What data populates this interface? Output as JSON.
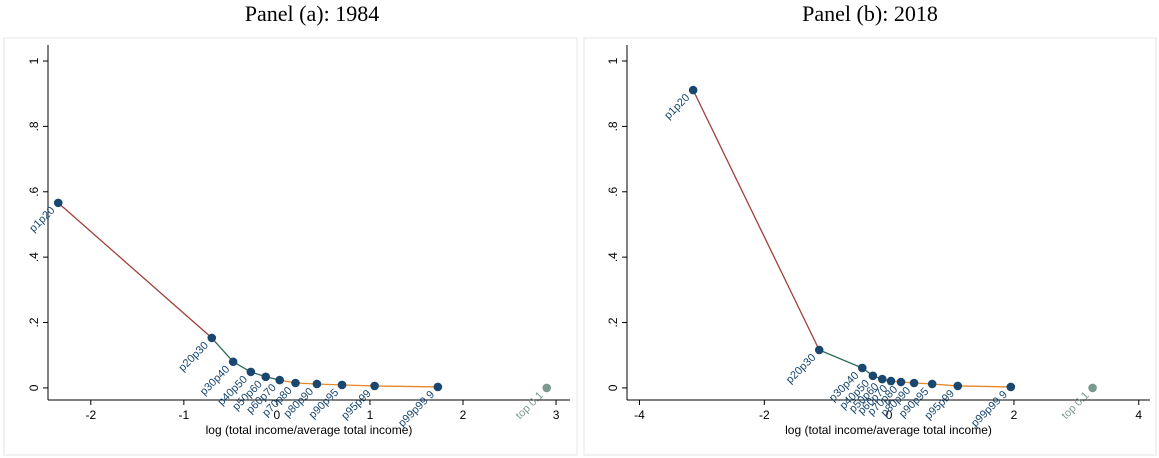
{
  "chart_data": [
    {
      "type": "scatter",
      "title": "Panel (a): 1984",
      "x_label": "log (total income/average total income)",
      "x": [
        -2.35,
        -0.7,
        -0.47,
        -0.28,
        -0.12,
        0.03,
        0.2,
        0.43,
        0.7,
        1.05,
        1.73,
        2.9
      ],
      "values": [
        0.566,
        0.153,
        0.08,
        0.049,
        0.034,
        0.024,
        0.015,
        0.012,
        0.009,
        0.006,
        0.003,
        0.0
      ],
      "point_labels": [
        "p1p20",
        "p20p30",
        "p30p40",
        "p40p50",
        "p50p60",
        "p60p70",
        "p70p80",
        "p80p90",
        "p90p95",
        "p95p99",
        "p99p99.9",
        "top 0.1"
      ],
      "colors": [
        "#1a476f",
        "#1a476f",
        "#1a476f",
        "#1a476f",
        "#1a476f",
        "#1a476f",
        "#1a476f",
        "#1a476f",
        "#1a476f",
        "#1a476f",
        "#1a476f",
        "#7a9a90"
      ],
      "line_colors": [
        "#a0413a",
        "#2f6b5c",
        "#2f6b5c",
        "#2f6b5c",
        "#2f6b5c",
        "#e8872a",
        "#e8872a",
        "#e8872a",
        "#e8872a",
        "#e8872a",
        null,
        null
      ],
      "xlim": [
        -2.46,
        3.15
      ],
      "ylim": [
        -0.037,
        1.049
      ],
      "xticks": [
        -2,
        -1,
        0,
        1,
        2,
        3
      ],
      "yticks": [
        0,
        {
          "value": 0.2,
          "label": ".2"
        },
        {
          "value": 0.4,
          "label": ".4"
        },
        {
          "value": 0.6,
          "label": ".6"
        },
        {
          "value": 0.8,
          "label": ".8"
        },
        1
      ]
    },
    {
      "type": "scatter",
      "title": "Panel (b): 2018",
      "x_label": "log (total income/average total income)",
      "x": [
        -3.14,
        -1.12,
        -0.43,
        -0.26,
        -0.11,
        0.03,
        0.19,
        0.4,
        0.69,
        1.1,
        1.95,
        3.26
      ],
      "values": [
        0.911,
        0.116,
        0.061,
        0.037,
        0.027,
        0.021,
        0.018,
        0.015,
        0.012,
        0.006,
        0.003,
        0.0
      ],
      "point_labels": [
        "p1p20",
        "p20p30",
        "p30p40",
        "p40p50",
        "p50p60",
        "p60p70",
        "p70p80",
        "p80p90",
        "p90p95",
        "p95p99",
        "p99p99.9",
        "top 0.1"
      ],
      "colors": [
        "#1a476f",
        "#1a476f",
        "#1a476f",
        "#1a476f",
        "#1a476f",
        "#1a476f",
        "#1a476f",
        "#1a476f",
        "#1a476f",
        "#1a476f",
        "#1a476f",
        "#7a9a90"
      ],
      "line_colors": [
        "#a0413a",
        "#2f6b5c",
        "#2f6b5c",
        "#2f6b5c",
        "#2f6b5c",
        "#e8872a",
        "#e8872a",
        "#e8872a",
        "#e8872a",
        "#e8872a",
        null,
        null
      ],
      "xlim": [
        -4.2,
        4.18
      ],
      "ylim": [
        -0.037,
        1.049
      ],
      "xticks": [
        -4,
        -2,
        0,
        2,
        4
      ],
      "yticks": [
        0,
        {
          "value": 0.2,
          "label": ".2"
        },
        {
          "value": 0.4,
          "label": ".4"
        },
        {
          "value": 0.6,
          "label": ".6"
        },
        {
          "value": 0.8,
          "label": ".8"
        },
        1
      ]
    }
  ]
}
